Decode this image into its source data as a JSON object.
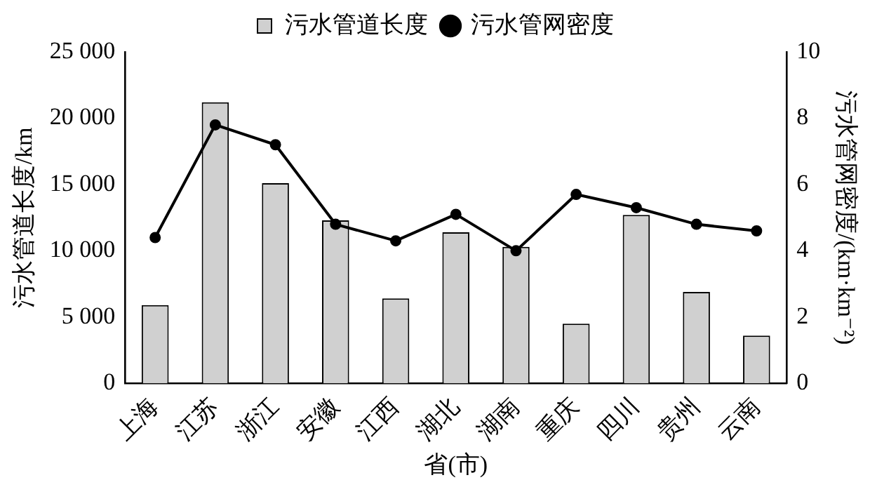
{
  "chart_data": {
    "type": "bar",
    "xlabel": "省(市)",
    "ylabel": "污水管道长度/km",
    "y2label": "污水管网密度/(km·km⁻²)",
    "categories": [
      "上海",
      "江苏",
      "浙江",
      "安徽",
      "江西",
      "湖北",
      "湖南",
      "重庆",
      "四川",
      "贵州",
      "云南"
    ],
    "series": [
      {
        "name": "污水管道长度",
        "color": "#d0d0d0",
        "values": [
          5900,
          21200,
          15100,
          12300,
          6400,
          11400,
          10300,
          4500,
          12700,
          6900,
          3600
        ]
      },
      {
        "name": "污水管网密度",
        "type": "line",
        "axis": "y2",
        "color": "#000000",
        "marker": "circle",
        "values": [
          4.4,
          7.8,
          7.2,
          4.8,
          4.3,
          5.1,
          4.0,
          5.7,
          5.3,
          4.8,
          4.6
        ]
      }
    ],
    "ylim": [
      0,
      25000
    ],
    "yticks": [
      0,
      {
        "value": 5000,
        "label": "5 000"
      },
      {
        "value": 10000,
        "label": "10 000"
      },
      {
        "value": 15000,
        "label": "15 000"
      },
      {
        "value": 20000,
        "label": "20 000"
      },
      {
        "value": 25000,
        "label": "25 000"
      }
    ],
    "y2lim": [
      0,
      10
    ],
    "y2ticks": [
      0,
      2,
      4,
      6,
      8,
      10
    ],
    "grid": false,
    "legend": "top"
  }
}
